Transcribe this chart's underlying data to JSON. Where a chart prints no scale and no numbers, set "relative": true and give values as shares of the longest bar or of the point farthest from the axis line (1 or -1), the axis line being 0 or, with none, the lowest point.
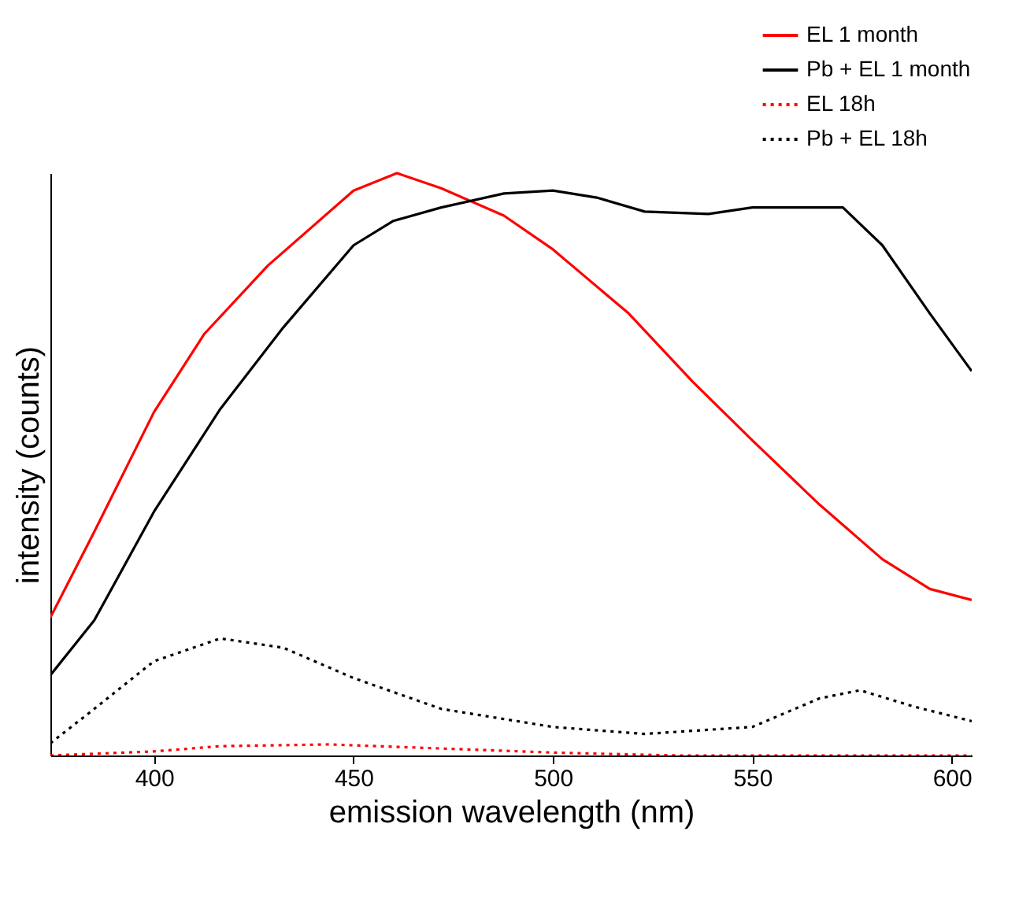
{
  "chart_data": {
    "type": "line",
    "relative": true,
    "xlabel": "emission wavelength (nm)",
    "ylabel": "intensity (counts)",
    "xlim": [
      374,
      605
    ],
    "xticks": [
      400,
      450,
      500,
      550,
      600
    ],
    "legend": "top right",
    "grid": false,
    "series": [
      {
        "name": "EL 1 month",
        "color": "#ff0000",
        "line_style": "solid",
        "x": [
          374,
          385,
          400,
          412.6,
          428.5,
          450,
          460.9,
          472,
          487.7,
          500,
          519,
          535,
          550,
          566.8,
          582.6,
          594.5,
          605
        ],
        "values": [
          0.237,
          0.384,
          0.59,
          0.724,
          0.841,
          0.97,
          1.0,
          0.974,
          0.927,
          0.869,
          0.759,
          0.642,
          0.541,
          0.431,
          0.337,
          0.286,
          0.267
        ]
      },
      {
        "name": "Pb + EL 1 month",
        "color": "#000000",
        "line_style": "solid",
        "x": [
          374,
          385,
          400,
          416.6,
          432.4,
          450,
          460,
          472,
          487.7,
          500,
          511,
          523,
          539,
          550,
          572.7,
          582.6,
          594.5,
          605
        ],
        "values": [
          0.138,
          0.232,
          0.419,
          0.595,
          0.735,
          0.876,
          0.918,
          0.941,
          0.965,
          0.97,
          0.958,
          0.934,
          0.93,
          0.941,
          0.941,
          0.876,
          0.759,
          0.66
        ]
      },
      {
        "name": "EL 18h",
        "color": "#ff0000",
        "line_style": "dotted",
        "x": [
          374,
          400,
          416.6,
          444,
          472,
          500,
          531,
          605
        ],
        "values": [
          0.0,
          0.007,
          0.016,
          0.019,
          0.012,
          0.005,
          0.0,
          0.0
        ]
      },
      {
        "name": "Pb + EL 18h",
        "color": "#000000",
        "line_style": "dotted",
        "x": [
          374,
          385,
          400,
          416.6,
          432.4,
          450,
          472,
          500,
          523,
          550,
          566.8,
          577,
          590.5,
          605
        ],
        "values": [
          0.021,
          0.08,
          0.162,
          0.201,
          0.185,
          0.133,
          0.08,
          0.049,
          0.037,
          0.049,
          0.098,
          0.112,
          0.084,
          0.059
        ]
      }
    ]
  }
}
